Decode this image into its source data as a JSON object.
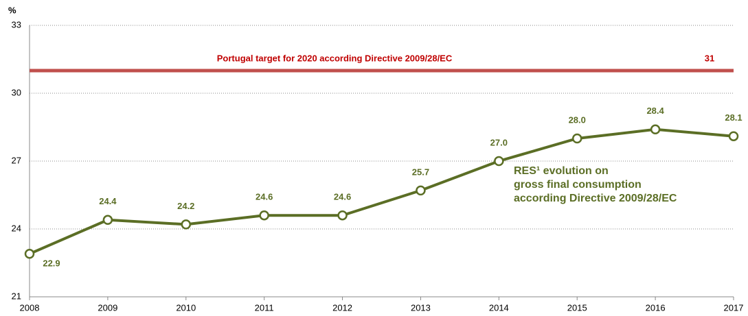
{
  "chart_data": {
    "type": "line",
    "y_unit": "%",
    "x": [
      2008,
      2009,
      2010,
      2011,
      2012,
      2013,
      2014,
      2015,
      2016,
      2017
    ],
    "xlim": [
      2008,
      2017
    ],
    "xticks": [
      2008,
      2009,
      2010,
      2011,
      2012,
      2013,
      2014,
      2015,
      2016,
      2017
    ],
    "ylim": [
      21,
      33
    ],
    "yticks": [
      21,
      24,
      27,
      30,
      33
    ],
    "grid": true,
    "series": [
      {
        "name": "RES¹ evolution  on gross final consumption according Directive 2009/28/EC",
        "color": "#5b6e25",
        "values": [
          22.9,
          24.4,
          24.2,
          24.6,
          24.6,
          25.7,
          27.0,
          28.0,
          28.4,
          28.1
        ],
        "value_labels": [
          "22.9",
          "24.4",
          "24.2",
          "24.6",
          "24.6",
          "25.7",
          "27.0",
          "28.0",
          "28.4",
          "28.1"
        ]
      }
    ],
    "annotation_lines": [
      "RES¹ evolution  on",
      "gross final consumption",
      "according Directive 2009/28/EC"
    ],
    "target": {
      "label": "Portugal target for 2020 according Directive 2009/28/EC",
      "value": 31,
      "color": "#c0504d"
    }
  }
}
